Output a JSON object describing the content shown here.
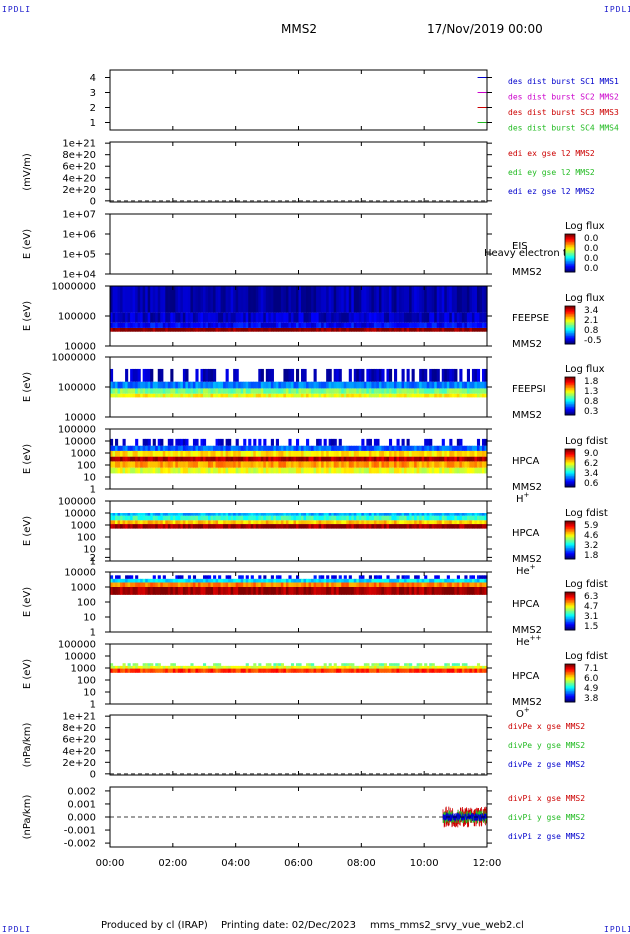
{
  "corner_label": "IPDLI",
  "header": {
    "left": "MMS2",
    "right": "17/Nov/2019 00:00"
  },
  "footer": {
    "produced_by": "Produced by cl (IRAP)",
    "printing_date": "Printing date: 02/Dec/2023",
    "filename": "mms_mms2_srvy_vue_web2.cl"
  },
  "chart_data": [
    {
      "type": "line",
      "panel": "spacecraft-burst-flags",
      "yticks": [
        "1",
        "2",
        "3",
        "4"
      ],
      "ylim": [
        0.5,
        4.5
      ],
      "xlabel_ticks": [
        "00:00",
        "02:00",
        "04:00",
        "06:00",
        "08:00",
        "10:00",
        "12:00"
      ],
      "xlim_hours": [
        0,
        12
      ],
      "series": [
        {
          "name": "des dist burst SC1 MMS1",
          "color": "#0000cc",
          "y": 4,
          "x_start": 11.7,
          "x_end": 12.0
        },
        {
          "name": "des dist burst SC2 MMS2",
          "color": "#cc00cc",
          "y": 3,
          "x_start": 11.7,
          "x_end": 12.0
        },
        {
          "name": "des dist burst SC3 MMS3",
          "color": "#cc0000",
          "y": 2,
          "x_start": 11.7,
          "x_end": 12.0
        },
        {
          "name": "des dist burst SC4 MMS4",
          "color": "#22bb22",
          "y": 1,
          "x_start": 11.7,
          "x_end": 12.0
        }
      ]
    },
    {
      "type": "line",
      "panel": "edi-efield",
      "ylabel": "(mV/m)",
      "yticks": [
        "0",
        "2e+20",
        "4e+20",
        "6e+20",
        "8e+20",
        "1e+21"
      ],
      "ylim": [
        -2e+19,
        1.02e+21
      ],
      "zero_dashed": true,
      "series": [
        {
          "name": "edi ex gse l2 MMS2",
          "color": "#cc0000"
        },
        {
          "name": "edi ey gse l2 MMS2",
          "color": "#22bb22"
        },
        {
          "name": "edi ez gse l2 MMS2",
          "color": "#0000cc"
        }
      ]
    },
    {
      "type": "heatmap",
      "panel": "eis",
      "ylabel": "E (eV)",
      "yticks": [
        "1e+04",
        "1e+05",
        "1e+06",
        "1e+07"
      ],
      "ylim": [
        10000,
        10000000
      ],
      "log_y": true,
      "right_labels": [
        "EIS",
        "MMS2"
      ],
      "overlay_text": "Heavy electron to",
      "colorbar": {
        "title": "Log flux",
        "ticks": [
          "0.0",
          "0.0",
          "0.0",
          "0.0"
        ]
      }
    },
    {
      "type": "heatmap",
      "panel": "feepse",
      "ylabel": "E (eV)",
      "yticks": [
        "10000",
        "100000",
        "1000000"
      ],
      "ylim": [
        10000,
        1000000
      ],
      "log_y": true,
      "right_labels": [
        "FEEPSE",
        "MMS2"
      ],
      "colorbar": {
        "title": "Log flux",
        "ticks": [
          "3.4",
          "2.1",
          "0.8",
          "-0.5"
        ]
      },
      "bands": [
        {
          "e_lo": 30000,
          "e_hi": 40000,
          "level": 1.0
        },
        {
          "e_lo": 40000,
          "e_hi": 60000,
          "level": 0.12
        },
        {
          "e_lo": 60000,
          "e_hi": 130000,
          "level": 0.07
        },
        {
          "e_lo": 130000,
          "e_hi": 1000000,
          "level": 0.04
        }
      ]
    },
    {
      "type": "heatmap",
      "panel": "feepsi",
      "ylabel": "E (eV)",
      "yticks": [
        "10000",
        "100000",
        "1000000"
      ],
      "ylim": [
        10000,
        1000000
      ],
      "log_y": true,
      "right_labels": [
        "FEEPSI",
        "MMS2"
      ],
      "colorbar": {
        "title": "Log flux",
        "ticks": [
          "1.8",
          "1.3",
          "0.8",
          "0.3"
        ]
      },
      "bands": [
        {
          "e_lo": 45000,
          "e_hi": 60000,
          "level": 0.62
        },
        {
          "e_lo": 60000,
          "e_hi": 90000,
          "level": 0.5
        },
        {
          "e_lo": 90000,
          "e_hi": 150000,
          "level": 0.25
        },
        {
          "e_lo": 150000,
          "e_hi": 400000,
          "level": 0.06,
          "sparse": true
        }
      ]
    },
    {
      "type": "heatmap",
      "panel": "hpca-h",
      "ylabel": "E (eV)",
      "yticks": [
        "1",
        "10",
        "100",
        "1000",
        "10000",
        "100000"
      ],
      "ylim": [
        1,
        100000
      ],
      "log_y": true,
      "right_labels": [
        "HPCA",
        "MMS2",
        "H+"
      ],
      "colorbar": {
        "title": "Log fdist",
        "ticks": [
          "9.0",
          "6.2",
          "3.4",
          "0.6"
        ]
      },
      "bands": [
        {
          "e_lo": 20,
          "e_hi": 60,
          "level": 0.6
        },
        {
          "e_lo": 60,
          "e_hi": 200,
          "level": 0.72
        },
        {
          "e_lo": 200,
          "e_hi": 500,
          "level": 0.95
        },
        {
          "e_lo": 500,
          "e_hi": 1500,
          "level": 0.65
        },
        {
          "e_lo": 1500,
          "e_hi": 4000,
          "level": 0.22
        },
        {
          "e_lo": 4000,
          "e_hi": 15000,
          "level": 0.08,
          "sparse": true
        }
      ]
    },
    {
      "type": "heatmap",
      "panel": "hpca-he",
      "ylabel": "E (eV)",
      "yticks": [
        "1",
        "2",
        "10",
        "100",
        "1000",
        "10000",
        "100000"
      ],
      "ylim": [
        1,
        100000
      ],
      "log_y": true,
      "right_labels": [
        "HPCA",
        "MMS2",
        "He+"
      ],
      "colorbar": {
        "title": "Log fdist",
        "ticks": [
          "5.9",
          "4.6",
          "3.2",
          "1.8"
        ]
      },
      "bands": [
        {
          "e_lo": 500,
          "e_hi": 1200,
          "level": 0.97
        },
        {
          "e_lo": 1200,
          "e_hi": 2500,
          "level": 0.68
        },
        {
          "e_lo": 2500,
          "e_hi": 6000,
          "level": 0.42
        },
        {
          "e_lo": 6000,
          "e_hi": 10000,
          "level": 0.3
        }
      ]
    },
    {
      "type": "heatmap",
      "panel": "hpca-he2",
      "ylabel": "E (eV)",
      "yticks": [
        "1",
        "10",
        "100",
        "1000",
        "10000"
      ],
      "ylim": [
        1,
        10000
      ],
      "log_y": true,
      "right_labels": [
        "HPCA",
        "MMS2",
        "He++"
      ],
      "colorbar": {
        "title": "Log fdist",
        "ticks": [
          "6.3",
          "4.7",
          "3.1",
          "1.5"
        ]
      },
      "bands": [
        {
          "e_lo": 300,
          "e_hi": 1000,
          "level": 0.97
        },
        {
          "e_lo": 1000,
          "e_hi": 2000,
          "level": 0.75
        },
        {
          "e_lo": 2000,
          "e_hi": 3500,
          "level": 0.35
        },
        {
          "e_lo": 3500,
          "e_hi": 6000,
          "level": 0.1,
          "sparse": true
        }
      ]
    },
    {
      "type": "heatmap",
      "panel": "hpca-o",
      "ylabel": "E (eV)",
      "yticks": [
        "1",
        "10",
        "100",
        "1000",
        "10000",
        "100000"
      ],
      "ylim": [
        1,
        100000
      ],
      "log_y": true,
      "right_labels": [
        "HPCA",
        "MMS2",
        "O+"
      ],
      "colorbar": {
        "title": "Log fdist",
        "ticks": [
          "7.1",
          "6.0",
          "4.9",
          "3.8"
        ]
      },
      "bands": [
        {
          "e_lo": 400,
          "e_hi": 900,
          "level": 0.82
        },
        {
          "e_lo": 900,
          "e_hi": 1500,
          "level": 0.6
        },
        {
          "e_lo": 1500,
          "e_hi": 2500,
          "level": 0.5,
          "sparse": true
        }
      ]
    },
    {
      "type": "line",
      "panel": "divpe",
      "ylabel": "(nPa/km)",
      "yticks": [
        "0",
        "2e+20",
        "4e+20",
        "6e+20",
        "8e+20",
        "1e+21"
      ],
      "ylim": [
        -2e+19,
        1.02e+21
      ],
      "zero_dashed": true,
      "series": [
        {
          "name": "divPe x gse MMS2",
          "color": "#cc0000"
        },
        {
          "name": "divPe y gse MMS2",
          "color": "#22bb22"
        },
        {
          "name": "divPe z gse MMS2",
          "color": "#0000cc"
        }
      ]
    },
    {
      "type": "line",
      "panel": "divpi",
      "ylabel": "(nPa/km)",
      "yticks": [
        "-0.002",
        "-0.001",
        "0.000",
        "0.001",
        "0.002"
      ],
      "ylim": [
        -0.0023,
        0.0023
      ],
      "zero_dashed": true,
      "data_x_start_hours": 10.6,
      "series": [
        {
          "name": "divPi x gse MMS2",
          "color": "#cc0000",
          "amplitude": 0.0008
        },
        {
          "name": "divPi y gse MMS2",
          "color": "#22bb22",
          "amplitude": 0.0005
        },
        {
          "name": "divPi z gse MMS2",
          "color": "#0000cc",
          "amplitude": 0.0003
        }
      ]
    }
  ]
}
